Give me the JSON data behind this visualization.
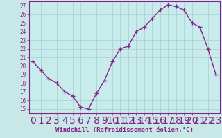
{
  "x": [
    0,
    1,
    2,
    3,
    4,
    5,
    6,
    7,
    8,
    9,
    10,
    11,
    12,
    13,
    14,
    15,
    16,
    17,
    18,
    19,
    20,
    21,
    22,
    23
  ],
  "y": [
    20.5,
    19.5,
    18.5,
    18.0,
    17.0,
    16.5,
    15.2,
    15.0,
    16.8,
    18.3,
    20.5,
    22.0,
    22.3,
    24.0,
    24.5,
    25.5,
    26.5,
    27.1,
    26.9,
    26.5,
    25.0,
    24.5,
    22.0,
    19.0
  ],
  "line_color": "#882288",
  "marker": "+",
  "marker_size": 4,
  "bg_color": "#c8e8e8",
  "plot_bg_color": "#c8ecec",
  "grid_color": "#aacccc",
  "xlabel": "Windchill (Refroidissement éolien,°C)",
  "xlim": [
    -0.5,
    23.5
  ],
  "ylim": [
    14.5,
    27.5
  ],
  "yticks": [
    15,
    16,
    17,
    18,
    19,
    20,
    21,
    22,
    23,
    24,
    25,
    26,
    27
  ],
  "xticks": [
    0,
    1,
    2,
    3,
    4,
    5,
    6,
    7,
    8,
    9,
    10,
    11,
    12,
    13,
    14,
    15,
    16,
    17,
    18,
    19,
    20,
    21,
    22,
    23
  ],
  "tick_label_size": 5.5,
  "xlabel_size": 6.5,
  "line_width": 1.0,
  "spine_color": "#882288"
}
